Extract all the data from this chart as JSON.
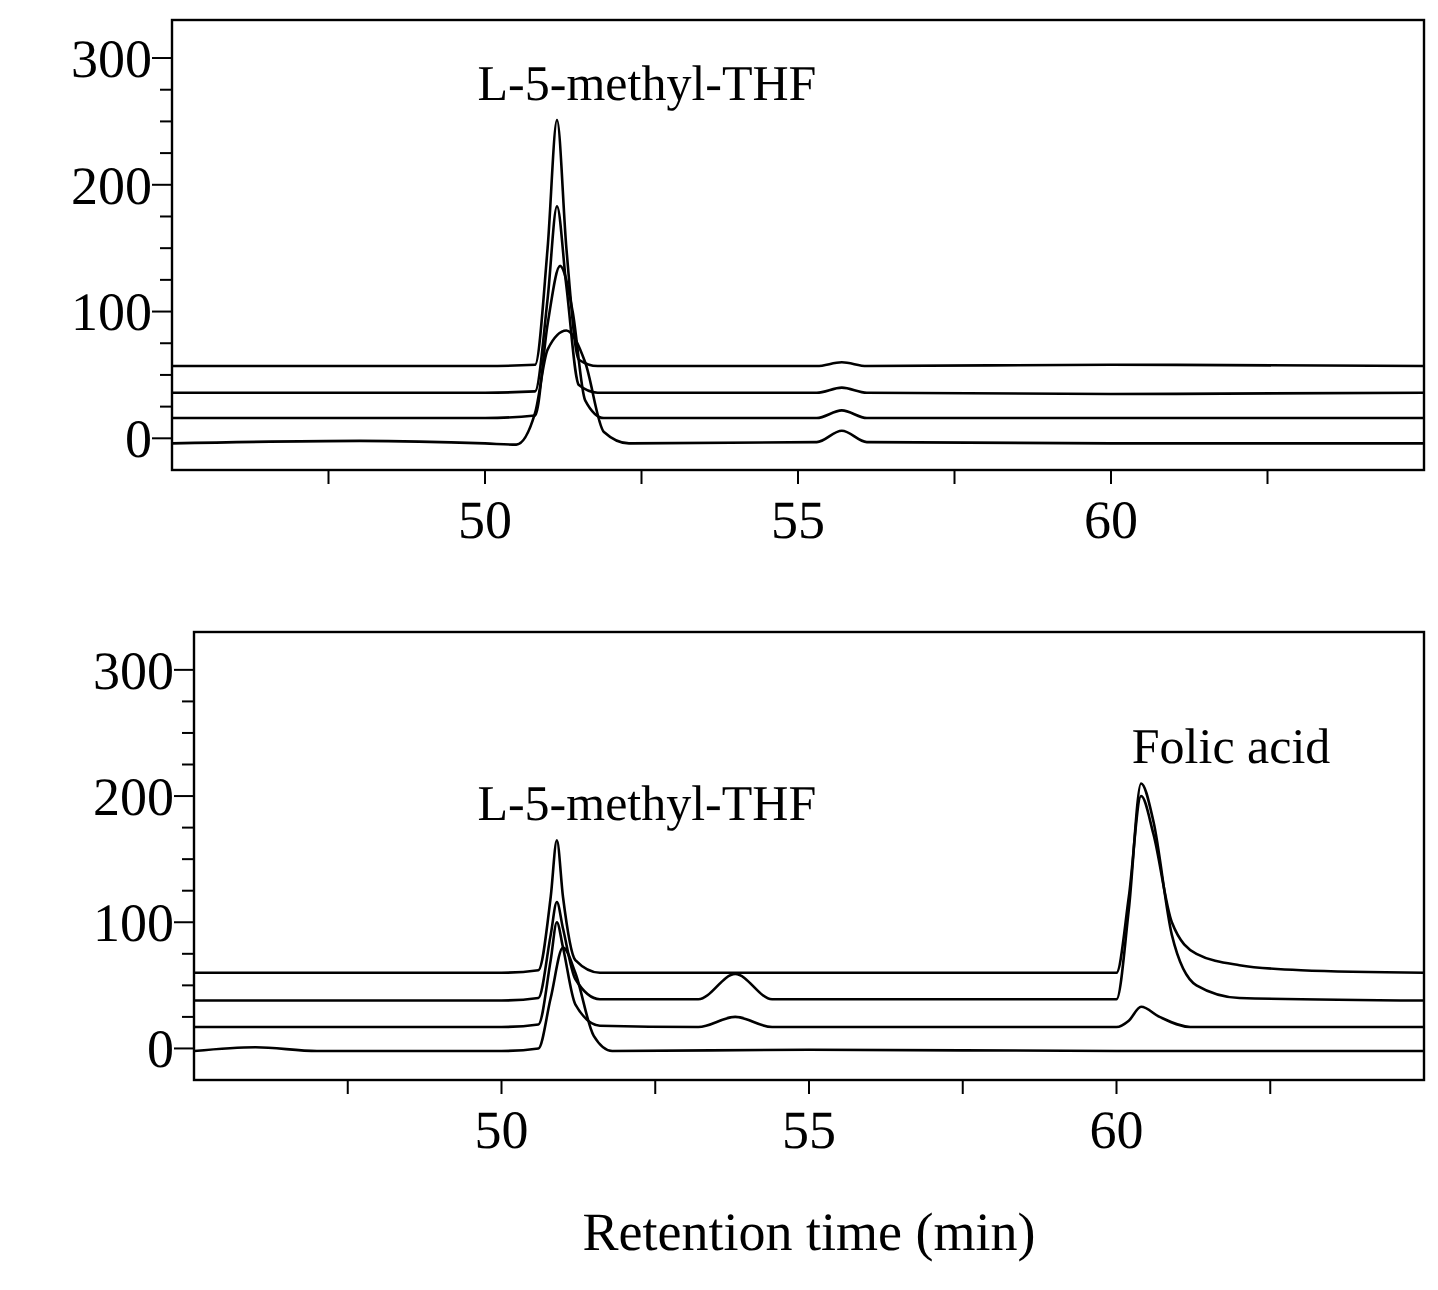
{
  "chart_data": [
    {
      "type": "line",
      "xlim": [
        45,
        65
      ],
      "ylim": [
        -25,
        330
      ],
      "xticks": [
        {
          "value": 47.5,
          "label": null
        },
        50,
        {
          "value": 52.5,
          "label": null
        },
        55,
        {
          "value": 57.5,
          "label": null
        },
        60,
        {
          "value": 62.5,
          "label": null
        }
      ],
      "yticks": [
        0,
        {
          "value": 25,
          "label": null
        },
        {
          "value": 50,
          "label": null
        },
        {
          "value": 75,
          "label": null
        },
        100,
        {
          "value": 125,
          "label": null
        },
        {
          "value": 150,
          "label": null
        },
        {
          "value": 175,
          "label": null
        },
        200,
        {
          "value": 225,
          "label": null
        },
        {
          "value": 250,
          "label": null
        },
        {
          "value": 275,
          "label": null
        },
        300
      ],
      "annotations": [
        {
          "text": "L-5-methyl-THF",
          "x": 51.15,
          "y": 251
        }
      ],
      "series": [
        {
          "color": "#000000",
          "x": [
            45,
            48,
            50,
            50.8,
            51.0,
            51.15,
            51.3,
            51.5,
            51.8,
            52.5,
            55.3,
            55.7,
            56.1,
            60,
            65
          ],
          "values": [
            57,
            57,
            57,
            58,
            150,
            251,
            150,
            62,
            57,
            57,
            57,
            60,
            57,
            58,
            57
          ]
        },
        {
          "color": "#000000",
          "x": [
            45,
            48,
            50,
            50.8,
            51.0,
            51.15,
            51.3,
            51.5,
            51.8,
            52.5,
            55.3,
            55.7,
            56.1,
            60,
            65
          ],
          "values": [
            36,
            36,
            36,
            37,
            110,
            183,
            120,
            42,
            36,
            36,
            36,
            40,
            36,
            35,
            36
          ]
        },
        {
          "color": "#000000",
          "x": [
            45,
            48,
            50,
            50.8,
            51.0,
            51.2,
            51.4,
            51.6,
            51.9,
            52.5,
            55.3,
            55.7,
            56.1,
            60,
            65
          ],
          "values": [
            16,
            16,
            16,
            18,
            90,
            136,
            100,
            30,
            16,
            16,
            16,
            22,
            16,
            16,
            16
          ]
        },
        {
          "color": "#000000",
          "x": [
            45,
            48,
            50,
            50.5,
            50.8,
            51.0,
            51.3,
            51.6,
            51.9,
            52.3,
            55.3,
            55.7,
            56.1,
            60,
            65
          ],
          "values": [
            -4,
            -2,
            -4,
            -5,
            20,
            70,
            85,
            60,
            5,
            -4,
            -3,
            6,
            -3,
            -4,
            -4
          ]
        }
      ]
    },
    {
      "type": "line",
      "xlim": [
        45,
        65
      ],
      "ylim": [
        -25,
        330
      ],
      "xlabel": "Retention time (min)",
      "xticks": [
        {
          "value": 47.5,
          "label": null
        },
        50,
        {
          "value": 52.5,
          "label": null
        },
        55,
        {
          "value": 57.5,
          "label": null
        },
        60,
        {
          "value": 62.5,
          "label": null
        }
      ],
      "yticks": [
        0,
        {
          "value": 25,
          "label": null
        },
        {
          "value": 50,
          "label": null
        },
        {
          "value": 75,
          "label": null
        },
        100,
        {
          "value": 125,
          "label": null
        },
        {
          "value": 150,
          "label": null
        },
        {
          "value": 175,
          "label": null
        },
        200,
        {
          "value": 225,
          "label": null
        },
        {
          "value": 250,
          "label": null
        },
        {
          "value": 275,
          "label": null
        },
        300
      ],
      "annotations": [
        {
          "text": "L-5-methyl-THF",
          "x": 50.9,
          "y": 165
        },
        {
          "text": "Folic acid",
          "x": 60.4,
          "y": 210
        }
      ],
      "series": [
        {
          "color": "#000000",
          "x": [
            45,
            50,
            50.6,
            50.8,
            50.9,
            51.0,
            51.2,
            51.6,
            53,
            60,
            60.2,
            60.4,
            60.6,
            60.9,
            61.3,
            62,
            63,
            65
          ],
          "values": [
            60,
            60,
            62,
            120,
            165,
            120,
            70,
            60,
            60,
            60,
            120,
            200,
            170,
            100,
            75,
            66,
            62,
            60
          ]
        },
        {
          "color": "#000000",
          "x": [
            45,
            50,
            50.6,
            50.8,
            50.9,
            51.0,
            51.2,
            51.6,
            53.2,
            53.8,
            54.4,
            60,
            60.2,
            60.4,
            60.6,
            60.9,
            61.3,
            62,
            65
          ],
          "values": [
            38,
            38,
            40,
            90,
            116,
            95,
            55,
            39,
            39,
            59,
            39,
            39,
            110,
            210,
            180,
            90,
            50,
            40,
            38
          ]
        },
        {
          "color": "#000000",
          "x": [
            45,
            50,
            50.6,
            50.8,
            50.9,
            51.0,
            51.2,
            51.6,
            53.2,
            53.8,
            54.4,
            60,
            60.2,
            60.4,
            60.7,
            61.2,
            65
          ],
          "values": [
            17,
            17,
            19,
            70,
            100,
            80,
            35,
            18,
            17,
            25,
            17,
            17,
            22,
            33,
            25,
            17,
            17
          ]
        },
        {
          "color": "#000000",
          "x": [
            45,
            46,
            47,
            50,
            50.6,
            50.8,
            51.0,
            51.2,
            51.5,
            51.8,
            55,
            60,
            65
          ],
          "values": [
            -2,
            1,
            -2,
            -2,
            0,
            40,
            80,
            60,
            10,
            -2,
            -1,
            -2,
            -2
          ]
        }
      ]
    }
  ]
}
